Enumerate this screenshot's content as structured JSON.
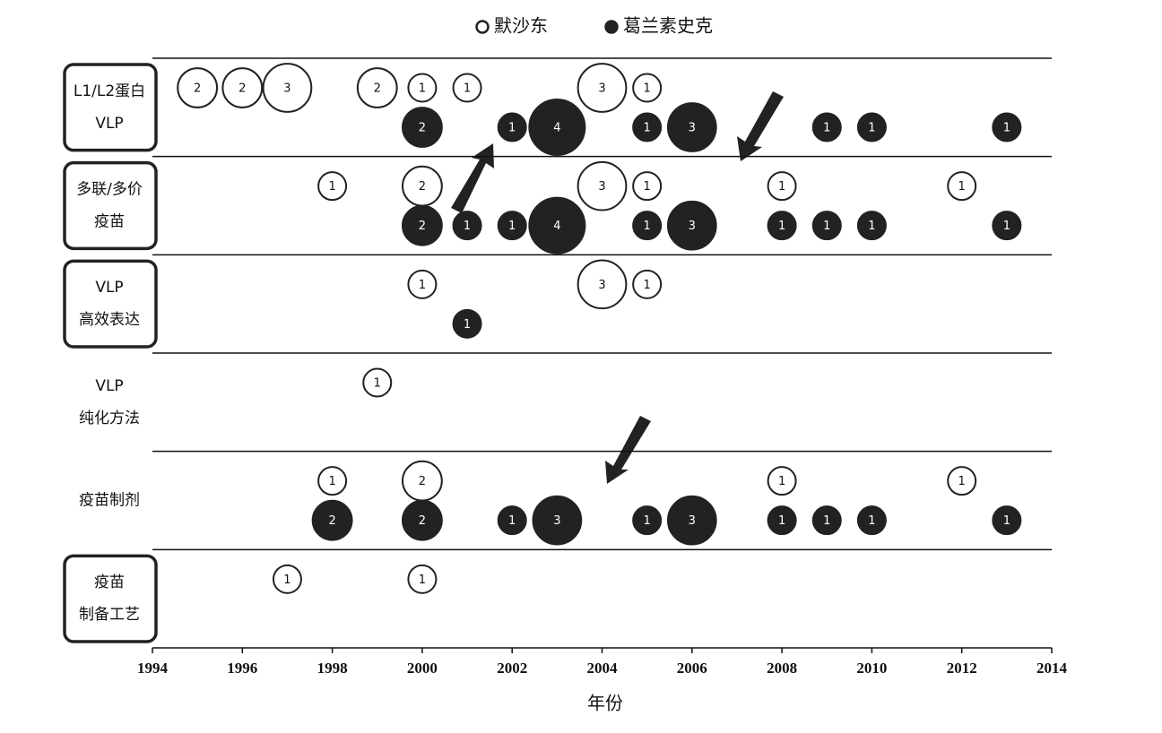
{
  "chart_data": {
    "type": "bubble",
    "xlabel": "年份",
    "xlim": [
      1994,
      2014
    ],
    "xticks": [
      1994,
      1996,
      1998,
      2000,
      2002,
      2004,
      2006,
      2008,
      2010,
      2012,
      2014
    ],
    "categories": [
      [
        "L1/L2蛋白",
        "VLP"
      ],
      [
        "多联/多价",
        "疫苗"
      ],
      [
        "VLP",
        "高效表达"
      ],
      [
        "VLP",
        "纯化方法"
      ],
      [
        "疫苗制剂"
      ],
      [
        "疫苗",
        "制备工艺"
      ]
    ],
    "category_boxed": [
      true,
      true,
      true,
      false,
      false,
      true
    ],
    "legend_position": "top",
    "series": [
      {
        "name": "默沙东",
        "color": "#222222",
        "filled": false,
        "x": [
          [
            1995,
            1996,
            1997,
            1999,
            2000,
            2001,
            2004,
            2005
          ],
          [
            1998,
            2000,
            2004,
            2005,
            2008,
            2012
          ],
          [
            2000,
            2004,
            2005
          ],
          [
            1999
          ],
          [
            1998,
            2000,
            2008,
            2012
          ],
          [
            1997,
            2000
          ]
        ],
        "values": [
          [
            2,
            2,
            3,
            2,
            1,
            1,
            3,
            1
          ],
          [
            1,
            2,
            3,
            1,
            1,
            1
          ],
          [
            1,
            3,
            1
          ],
          [
            1
          ],
          [
            1,
            2,
            1,
            1
          ],
          [
            1,
            1
          ]
        ]
      },
      {
        "name": "葛兰素史克",
        "color": "#222222",
        "filled": true,
        "x": [
          [
            2000,
            2002,
            2003,
            2005,
            2006,
            2009,
            2010,
            2013
          ],
          [
            2000,
            2001,
            2002,
            2003,
            2005,
            2006,
            2008,
            2009,
            2010,
            2013
          ],
          [
            2001
          ],
          [],
          [
            1998,
            2000,
            2002,
            2003,
            2005,
            2006,
            2008,
            2009,
            2010,
            2013
          ],
          []
        ],
        "values": [
          [
            2,
            1,
            4,
            1,
            3,
            1,
            1,
            1
          ],
          [
            2,
            1,
            1,
            4,
            1,
            3,
            1,
            1,
            1,
            1
          ],
          [
            1
          ],
          [],
          [
            2,
            2,
            1,
            3,
            1,
            3,
            1,
            1,
            1,
            1
          ],
          []
        ]
      }
    ]
  }
}
